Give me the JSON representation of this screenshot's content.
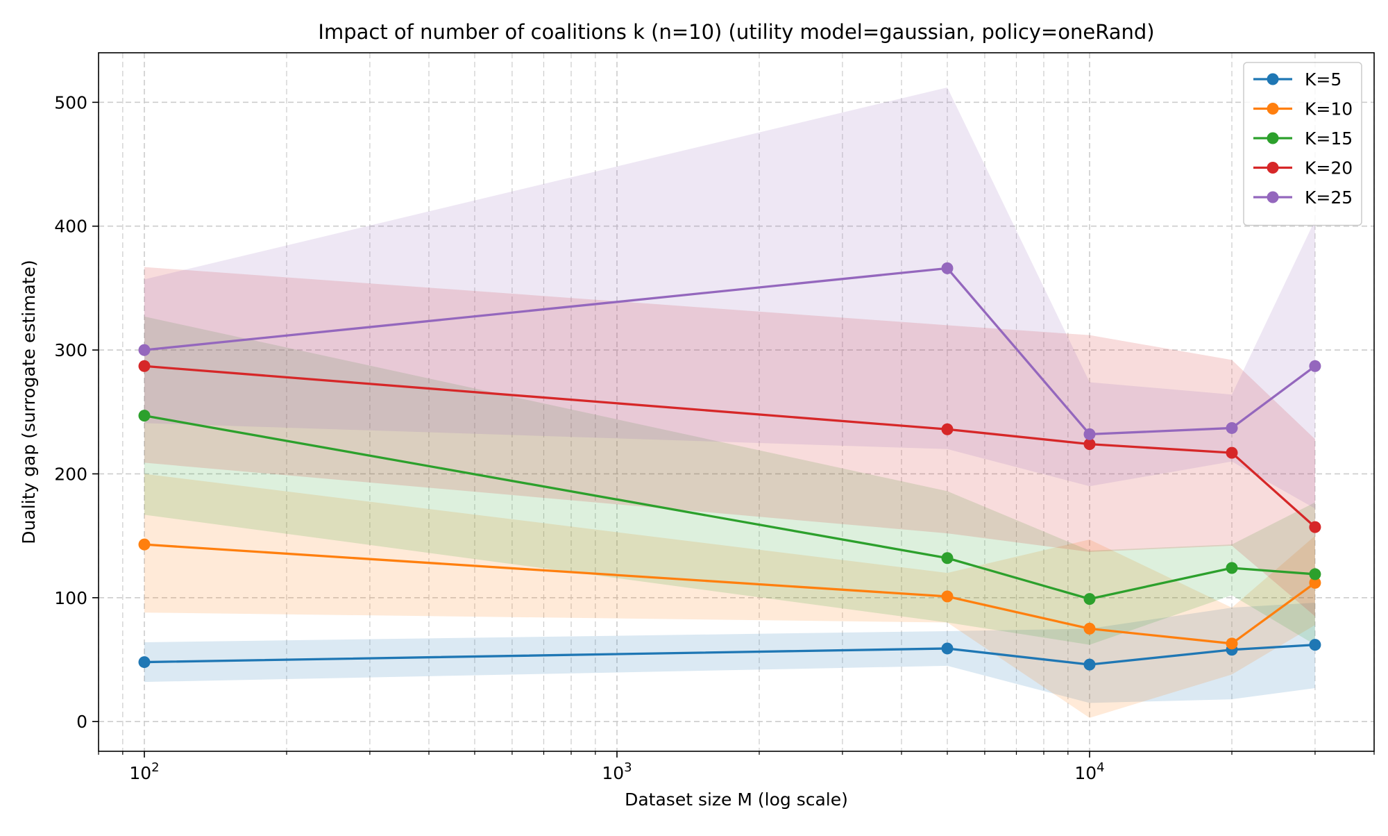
{
  "chart_data": {
    "type": "line",
    "title": "Impact of number of coalitions k (n=10) (utility model=gaussian, policy=oneRand)",
    "xlabel": "Dataset size M (log scale)",
    "ylabel": "Duality gap (surrogate estimate)",
    "xscale": "log",
    "xlim": [
      80,
      40000
    ],
    "ylim": [
      -24,
      540
    ],
    "x": [
      100,
      5000,
      10000,
      20000,
      30000
    ],
    "grid": true,
    "legend_position": "top-right",
    "x_ticks": [
      {
        "value": 100,
        "base": "10",
        "exp": "2"
      },
      {
        "value": 1000,
        "base": "10",
        "exp": "3"
      },
      {
        "value": 10000,
        "base": "10",
        "exp": "4"
      }
    ],
    "y_ticks": [
      {
        "value": 0,
        "label": "0"
      },
      {
        "value": 100,
        "label": "100"
      },
      {
        "value": 200,
        "label": "200"
      },
      {
        "value": 300,
        "label": "300"
      },
      {
        "value": 400,
        "label": "400"
      },
      {
        "value": 500,
        "label": "500"
      }
    ],
    "series": [
      {
        "name": "K=5",
        "color": "#1f77b4",
        "values": [
          48,
          59,
          46,
          58,
          62
        ],
        "lower": [
          32,
          45,
          15,
          18,
          27
        ],
        "upper": [
          64,
          73,
          75,
          92,
          96
        ]
      },
      {
        "name": "K=10",
        "color": "#ff7f0e",
        "values": [
          143,
          101,
          75,
          63,
          112
        ],
        "lower": [
          88,
          80,
          3,
          38,
          78
        ],
        "upper": [
          200,
          120,
          147,
          92,
          150
        ]
      },
      {
        "name": "K=15",
        "color": "#2ca02c",
        "values": [
          247,
          132,
          99,
          124,
          119
        ],
        "lower": [
          167,
          80,
          62,
          102,
          62
        ],
        "upper": [
          327,
          186,
          138,
          143,
          177
        ]
      },
      {
        "name": "K=20",
        "color": "#d62728",
        "values": [
          287,
          236,
          224,
          217,
          157
        ],
        "lower": [
          209,
          152,
          137,
          142,
          85
        ],
        "upper": [
          367,
          320,
          312,
          292,
          228
        ]
      },
      {
        "name": "K=25",
        "color": "#9467bd",
        "values": [
          300,
          366,
          232,
          237,
          287
        ],
        "lower": [
          241,
          220,
          190,
          210,
          172
        ],
        "upper": [
          357,
          512,
          274,
          264,
          405
        ]
      }
    ]
  }
}
